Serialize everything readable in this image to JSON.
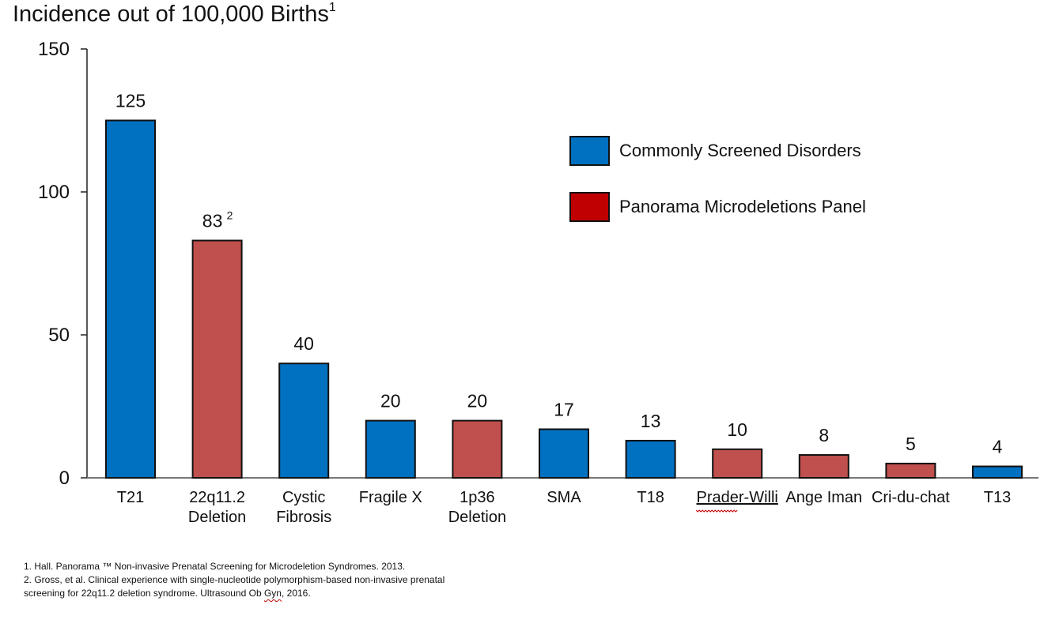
{
  "chart_data": {
    "type": "bar",
    "title": "Incidence out of 100,000 Births",
    "title_footnote": "1",
    "categories": [
      "T21",
      "22q11.2 Deletion",
      "Cystic Fibrosis",
      "Fragile X",
      "1p36 Deletion",
      "SMA",
      "T18",
      "Prader-Willi",
      "Ange Iman",
      "Cri-du-chat",
      "T13"
    ],
    "category_lines": [
      [
        "T21"
      ],
      [
        "22q11.2",
        "Deletion"
      ],
      [
        "Cystic",
        "Fibrosis"
      ],
      [
        "Fragile X"
      ],
      [
        "1p36",
        "Deletion"
      ],
      [
        "SMA"
      ],
      [
        "T18"
      ],
      [
        "Prader-Willi"
      ],
      [
        "Ange Iman"
      ],
      [
        "Cri-du-chat"
      ],
      [
        "T13"
      ]
    ],
    "values": [
      125,
      83,
      40,
      20,
      20,
      17,
      13,
      10,
      8,
      5,
      4
    ],
    "data_labels": [
      "125",
      "83",
      "40",
      "20",
      "20",
      "17",
      "13",
      "10",
      "8",
      "5",
      "4"
    ],
    "label_superscripts": [
      "",
      "2",
      "",
      "",
      "",
      "",
      "",
      "",
      "",
      "",
      ""
    ],
    "groups": [
      "Commonly Screened Disorders",
      "Panorama Microdeletions Panel",
      "Commonly Screened Disorders",
      "Commonly Screened Disorders",
      "Panorama Microdeletions Panel",
      "Commonly Screened Disorders",
      "Commonly Screened Disorders",
      "Panorama Microdeletions Panel",
      "Panorama Microdeletions Panel",
      "Panorama Microdeletions Panel",
      "Commonly Screened Disorders"
    ],
    "ylim": [
      0,
      150
    ],
    "yticks": [
      0,
      50,
      100,
      150
    ],
    "xlabel": "",
    "ylabel": "",
    "grid": false,
    "legend": {
      "position": "top-right",
      "entries": [
        {
          "label": "Commonly Screened Disorders",
          "color": "#0070c0"
        },
        {
          "label": "Panorama Microdeletions Panel",
          "color": "#c00000"
        }
      ]
    },
    "bar_colors": {
      "Commonly Screened Disorders": "#0070c0",
      "Panorama Microdeletions Panel": "#c0504d"
    }
  },
  "footnotes": {
    "line1": "1.  Hall. Panorama ™ Non-invasive Prenatal Screening for Microdeletion Syndromes. 2013.",
    "line2": "2.  Gross, et al. Clinical experience with single-nucleotide polymorphism-based non-invasive prenatal",
    "line3a": "screening for 22q11.2 deletion syndrome. Ultrasound Ob ",
    "line3b": "Gyn",
    "line3c": ", 2016."
  }
}
